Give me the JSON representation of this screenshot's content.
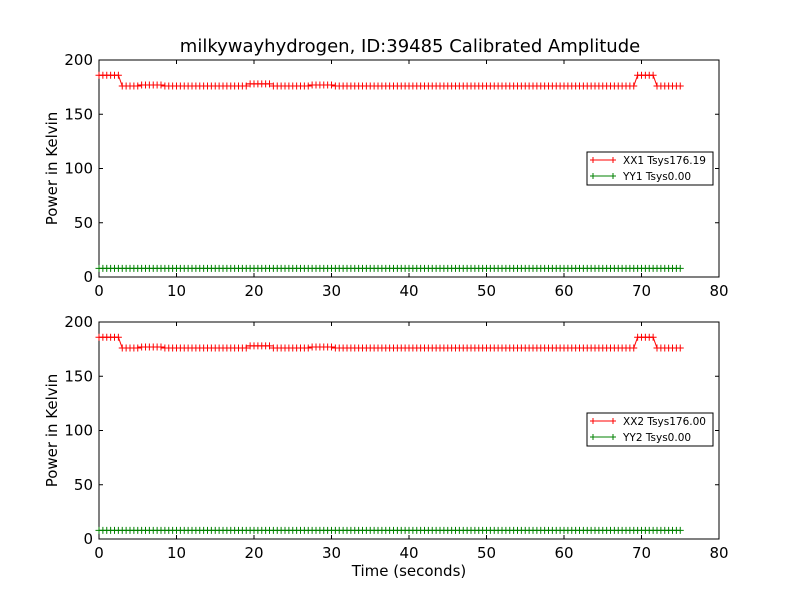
{
  "figure": {
    "title": "milkywayhydrogen, ID:39485 Calibrated Amplitude"
  },
  "chart_data": [
    {
      "type": "line",
      "title": "milkywayhydrogen, ID:39485 Calibrated Amplitude",
      "xlabel": "",
      "ylabel": "Power in Kelvin",
      "xlim": [
        0,
        80
      ],
      "ylim": [
        0,
        200
      ],
      "xticks": [
        "0",
        "10",
        "20",
        "30",
        "40",
        "50",
        "60",
        "70",
        "80"
      ],
      "yticks": [
        "0",
        "50",
        "100",
        "150",
        "200"
      ],
      "grid": false,
      "legend_position": "center-right",
      "series": [
        {
          "name": "XX1 Tsys176.19",
          "color": "#ff0000",
          "marker": "plus",
          "segments": [
            {
              "x0": 0,
              "x1": 2.5,
              "y": 186
            },
            {
              "x0": 3,
              "x1": 5,
              "y": 176
            },
            {
              "x0": 5,
              "x1": 8,
              "y": 177
            },
            {
              "x0": 8,
              "x1": 19,
              "y": 176
            },
            {
              "x0": 19,
              "x1": 22,
              "y": 178
            },
            {
              "x0": 22,
              "x1": 27,
              "y": 176
            },
            {
              "x0": 27,
              "x1": 30,
              "y": 177
            },
            {
              "x0": 30,
              "x1": 69,
              "y": 176
            },
            {
              "x0": 69.5,
              "x1": 71.5,
              "y": 186
            },
            {
              "x0": 72,
              "x1": 75,
              "y": 176
            }
          ]
        },
        {
          "name": "YY1 Tsys0.00",
          "color": "#008000",
          "marker": "plus",
          "segments": [
            {
              "x0": 0,
              "x1": 75,
              "y": 8
            }
          ]
        }
      ]
    },
    {
      "type": "line",
      "title": "",
      "xlabel": "Time (seconds)",
      "ylabel": "Power in Kelvin",
      "xlim": [
        0,
        80
      ],
      "ylim": [
        0,
        200
      ],
      "xticks": [
        "0",
        "10",
        "20",
        "30",
        "40",
        "50",
        "60",
        "70",
        "80"
      ],
      "yticks": [
        "0",
        "50",
        "100",
        "150",
        "200"
      ],
      "grid": false,
      "legend_position": "center-right",
      "series": [
        {
          "name": "XX2 Tsys176.00",
          "color": "#ff0000",
          "marker": "plus",
          "segments": [
            {
              "x0": 0,
              "x1": 2.5,
              "y": 186
            },
            {
              "x0": 3,
              "x1": 5,
              "y": 176
            },
            {
              "x0": 5,
              "x1": 8,
              "y": 177
            },
            {
              "x0": 8,
              "x1": 19,
              "y": 176
            },
            {
              "x0": 19,
              "x1": 22,
              "y": 178
            },
            {
              "x0": 22,
              "x1": 27,
              "y": 176
            },
            {
              "x0": 27,
              "x1": 30,
              "y": 177
            },
            {
              "x0": 30,
              "x1": 69,
              "y": 176
            },
            {
              "x0": 69.5,
              "x1": 71.5,
              "y": 186
            },
            {
              "x0": 72,
              "x1": 75,
              "y": 176
            }
          ]
        },
        {
          "name": "YY2 Tsys0.00",
          "color": "#008000",
          "marker": "plus",
          "segments": [
            {
              "x0": 0,
              "x1": 75,
              "y": 8
            }
          ]
        }
      ]
    }
  ]
}
